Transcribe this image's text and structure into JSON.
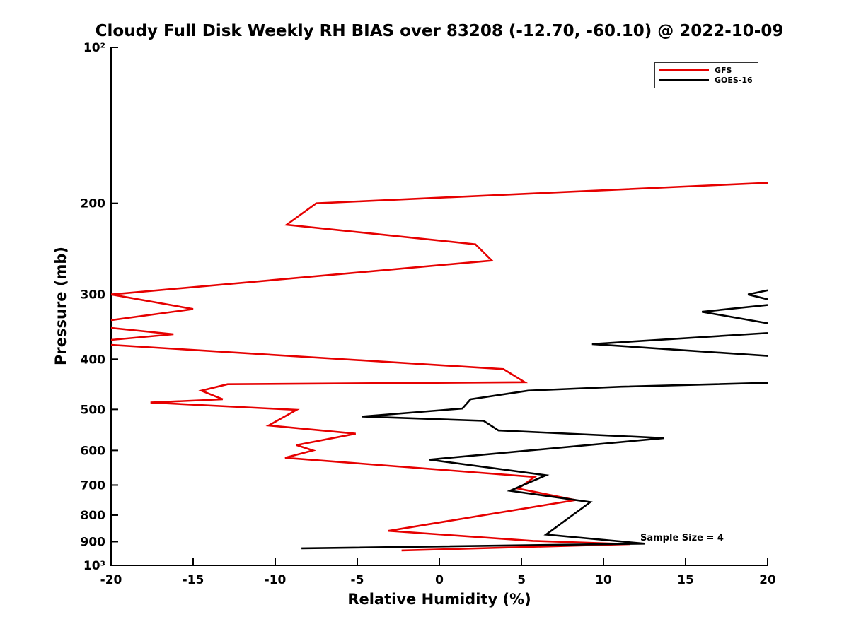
{
  "chart_data": {
    "type": "line",
    "title": "Cloudy Full Disk Weekly RH BIAS over 83208 (-12.70, -60.10) @ 2022-10-09",
    "xlabel": "Relative Humidity (%)",
    "ylabel": "Pressure (mb)",
    "annotation": "Sample Size = 4",
    "xlim": [
      -20,
      20
    ],
    "ylim": [
      1000,
      100
    ],
    "y_scale": "log",
    "grid": false,
    "legend_position": "upper right",
    "x_ticks": [
      -20,
      -15,
      -10,
      -5,
      0,
      5,
      10,
      15,
      20
    ],
    "y_ticks": [
      {
        "p": 100,
        "label": "10²"
      },
      {
        "p": 200,
        "label": "200"
      },
      {
        "p": 300,
        "label": "300"
      },
      {
        "p": 400,
        "label": "400"
      },
      {
        "p": 500,
        "label": "500"
      },
      {
        "p": 600,
        "label": "600"
      },
      {
        "p": 700,
        "label": "700"
      },
      {
        "p": 800,
        "label": "800"
      },
      {
        "p": 900,
        "label": "900"
      },
      {
        "p": 1000,
        "label": "10³"
      }
    ],
    "series": [
      {
        "name": "GFS",
        "color": "#e60000",
        "points_format": "[rh_bias_percent, pressure_mb]",
        "points": [
          [
            21,
            182
          ],
          [
            -7.5,
            200
          ],
          [
            -9.3,
            220
          ],
          [
            2.2,
            240
          ],
          [
            3.2,
            258
          ],
          [
            -20,
            300
          ],
          [
            -15,
            320
          ],
          [
            -22,
            343
          ],
          [
            -16.2,
            358
          ],
          [
            -22,
            372
          ],
          [
            3.9,
            418
          ],
          [
            5.2,
            443
          ],
          [
            -12.9,
            447
          ],
          [
            -14.5,
            460
          ],
          [
            -13.2,
            478
          ],
          [
            -17.6,
            485
          ],
          [
            -8.7,
            501
          ],
          [
            -10.4,
            537
          ],
          [
            -5.1,
            557
          ],
          [
            -8.7,
            586
          ],
          [
            -7.7,
            600
          ],
          [
            -9.4,
            620
          ],
          [
            5.8,
            675
          ],
          [
            4.8,
            711
          ],
          [
            8.3,
            748
          ],
          [
            -3.1,
            858
          ],
          [
            5.7,
            897
          ],
          [
            11.6,
            910
          ],
          [
            -2.3,
            936
          ]
        ]
      },
      {
        "name": "GOES-16",
        "color": "#000000",
        "points_format": "[rh_bias_percent, pressure_mb]",
        "points": [
          [
            21,
            290
          ],
          [
            18.8,
            300
          ],
          [
            21,
            312
          ],
          [
            16,
            324
          ],
          [
            22.5,
            352
          ],
          [
            9.3,
            374
          ],
          [
            22,
            398
          ],
          [
            21.5,
            443
          ],
          [
            11.1,
            452
          ],
          [
            5.4,
            460
          ],
          [
            1.9,
            478
          ],
          [
            1.4,
            498
          ],
          [
            -4.7,
            516
          ],
          [
            2.7,
            526
          ],
          [
            3.6,
            549
          ],
          [
            13.7,
            568
          ],
          [
            -0.6,
            625
          ],
          [
            6.5,
            670
          ],
          [
            4.3,
            718
          ],
          [
            9.2,
            755
          ],
          [
            6.5,
            872
          ],
          [
            12.5,
            908
          ],
          [
            -8.4,
            927
          ]
        ]
      }
    ]
  }
}
